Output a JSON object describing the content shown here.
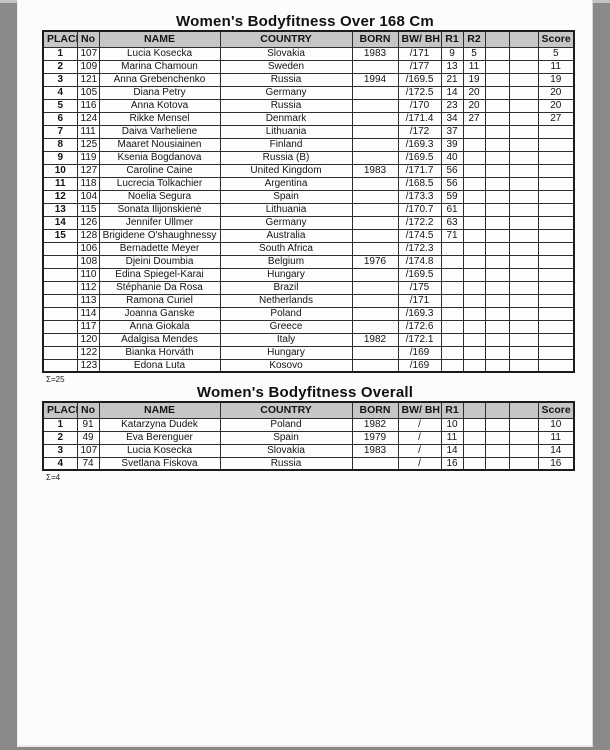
{
  "page": {
    "paper_color": "#fcfcfc",
    "background_color": "#898989",
    "header_fill_color": "#c6c6c6",
    "border_color": "#1c1c1c"
  },
  "tables": [
    {
      "title": "Women's Bodyfitness Over 168 Cm",
      "headers": [
        "PLACE",
        "No",
        "NAME",
        "COUNTRY",
        "BORN",
        "BW/ BH",
        "R1",
        "R2",
        "",
        "",
        "Score"
      ],
      "rows": [
        [
          "1",
          "107",
          "Lucia Kosecka",
          "Slovakia",
          "1983",
          "/171",
          "9",
          "5",
          "",
          "",
          "5"
        ],
        [
          "2",
          "109",
          "Marina Chamoun",
          "Sweden",
          "",
          "/177",
          "13",
          "11",
          "",
          "",
          "11"
        ],
        [
          "3",
          "121",
          "Anna Grebenchenko",
          "Russia",
          "1994",
          "/169.5",
          "21",
          "19",
          "",
          "",
          "19"
        ],
        [
          "4",
          "105",
          "Diana Petry",
          "Germany",
          "",
          "/172.5",
          "14",
          "20",
          "",
          "",
          "20"
        ],
        [
          "5",
          "116",
          "Anna Kotova",
          "Russia",
          "",
          "/170",
          "23",
          "20",
          "",
          "",
          "20"
        ],
        [
          "6",
          "124",
          "Rikke Mensel",
          "Denmark",
          "",
          "/171.4",
          "34",
          "27",
          "",
          "",
          "27"
        ],
        [
          "7",
          "111",
          "Daiva Varheliene",
          "Lithuania",
          "",
          "/172",
          "37",
          "",
          "",
          "",
          ""
        ],
        [
          "8",
          "125",
          "Maaret Nousiainen",
          "Finland",
          "",
          "/169.3",
          "39",
          "",
          "",
          "",
          ""
        ],
        [
          "9",
          "119",
          "Ksenia Bogdanova",
          "Russia (B)",
          "",
          "/169.5",
          "40",
          "",
          "",
          "",
          ""
        ],
        [
          "10",
          "127",
          "Caroline Caine",
          "United Kingdom",
          "1983",
          "/171.7",
          "56",
          "",
          "",
          "",
          ""
        ],
        [
          "11",
          "118",
          "Lucrecia Tolkachier",
          "Argentina",
          "",
          "/168.5",
          "56",
          "",
          "",
          "",
          ""
        ],
        [
          "12",
          "104",
          "Noelia Segura",
          "Spain",
          "",
          "/173.3",
          "59",
          "",
          "",
          "",
          ""
        ],
        [
          "13",
          "115",
          "Sonata Ilijonskienė",
          "Lithuania",
          "",
          "/170.7",
          "61",
          "",
          "",
          "",
          ""
        ],
        [
          "14",
          "126",
          "Jennifer Ullmer",
          "Germany",
          "",
          "/172.2",
          "63",
          "",
          "",
          "",
          ""
        ],
        [
          "15",
          "128",
          "Brigidene O'shaughnessy",
          "Australia",
          "",
          "/174.5",
          "71",
          "",
          "",
          "",
          ""
        ],
        [
          "",
          "106",
          "Bernadette Meyer",
          "South Africa",
          "",
          "/172.3",
          "",
          "",
          "",
          "",
          ""
        ],
        [
          "",
          "108",
          "Djeini Doumbia",
          "Belgium",
          "1976",
          "/174.8",
          "",
          "",
          "",
          "",
          ""
        ],
        [
          "",
          "110",
          "Edina Spiegel-Karai",
          "Hungary",
          "",
          "/169.5",
          "",
          "",
          "",
          "",
          ""
        ],
        [
          "",
          "112",
          "Stéphanie Da Rosa",
          "Brazil",
          "",
          "/175",
          "",
          "",
          "",
          "",
          ""
        ],
        [
          "",
          "113",
          "Ramona Curiel",
          "Netherlands",
          "",
          "/171",
          "",
          "",
          "",
          "",
          ""
        ],
        [
          "",
          "114",
          "Joanna Ganske",
          "Poland",
          "",
          "/169.3",
          "",
          "",
          "",
          "",
          ""
        ],
        [
          "",
          "117",
          "Anna Giokala",
          "Greece",
          "",
          "/172.6",
          "",
          "",
          "",
          "",
          ""
        ],
        [
          "",
          "120",
          "Adalgisa Mendes",
          "Italy",
          "1982",
          "/172.1",
          "",
          "",
          "",
          "",
          ""
        ],
        [
          "",
          "122",
          "Bianka Horváth",
          "Hungary",
          "",
          "/169",
          "",
          "",
          "",
          "",
          ""
        ],
        [
          "",
          "123",
          "Edona Luta",
          "Kosovo",
          "",
          "/169",
          "",
          "",
          "",
          "",
          ""
        ]
      ],
      "footer": "Σ=25"
    },
    {
      "title": "Women's Bodyfitness Overall",
      "headers": [
        "PLACE",
        "No",
        "NAME",
        "COUNTRY",
        "BORN",
        "BW/ BH",
        "R1",
        "",
        "",
        "",
        "Score"
      ],
      "rows": [
        [
          "1",
          "91",
          "Katarzyna Dudek",
          "Poland",
          "1982",
          "/",
          "10",
          "",
          "",
          "",
          "10"
        ],
        [
          "2",
          "49",
          "Eva Berenguer",
          "Spain",
          "1979",
          "/",
          "11",
          "",
          "",
          "",
          "11"
        ],
        [
          "3",
          "107",
          "Lucia Kosecka",
          "Slovakia",
          "1983",
          "/",
          "14",
          "",
          "",
          "",
          "14"
        ],
        [
          "4",
          "74",
          "Svetlana Fiskova",
          "Russia",
          "",
          "/",
          "16",
          "",
          "",
          "",
          "16"
        ]
      ],
      "footer": "Σ=4"
    }
  ]
}
